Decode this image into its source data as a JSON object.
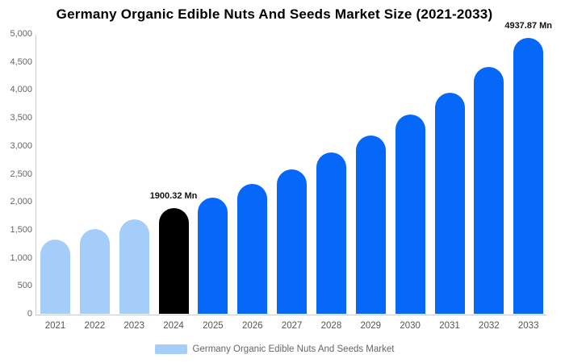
{
  "title": "Germany Organic Edible Nuts And Seeds Market Size (2021-2033)",
  "legend": {
    "label": "Germany Organic Edible Nuts And Seeds Market",
    "swatch_color": "#a5cdf9"
  },
  "colors": {
    "historical_bar": "#a5cdf9",
    "base_year_bar": "#000000",
    "forecast_bar": "#0668f8",
    "axis_line": "#cccccc",
    "ytick_text": "#666666",
    "xtick_text": "#555555",
    "annotation_text": "#111111",
    "title_text": "#000000",
    "background": "#ffffff"
  },
  "chart_data": {
    "type": "bar",
    "title": "Germany Organic Edible Nuts And Seeds Market Size (2021-2033)",
    "categories": [
      "2021",
      "2022",
      "2023",
      "2024",
      "2025",
      "2026",
      "2027",
      "2028",
      "2029",
      "2030",
      "2031",
      "2032",
      "2033"
    ],
    "values": [
      1330,
      1515,
      1690,
      1900.32,
      2080,
      2330,
      2590,
      2890,
      3190,
      3560,
      3950,
      4420,
      4937.87
    ],
    "unit": "Mn",
    "bar_colors": [
      "#a5cdf9",
      "#a5cdf9",
      "#a5cdf9",
      "#000000",
      "#0668f8",
      "#0668f8",
      "#0668f8",
      "#0668f8",
      "#0668f8",
      "#0668f8",
      "#0668f8",
      "#0668f8",
      "#0668f8"
    ],
    "annotations": [
      {
        "category": "2024",
        "text": "1900.32 Mn"
      },
      {
        "category": "2033",
        "text": "4937.87 Mn"
      }
    ],
    "xlabel": "",
    "ylabel": "",
    "ylim": [
      0,
      5000
    ],
    "ytick_step": 500,
    "ytick_labels": [
      "0",
      "500",
      "1,000",
      "1,500",
      "2,000",
      "2,500",
      "3,000",
      "3,500",
      "4,000",
      "4,500",
      "5,000"
    ],
    "grid": false,
    "legend_position": "bottom",
    "legend_entries": [
      "Germany Organic Edible Nuts And Seeds Market"
    ]
  }
}
